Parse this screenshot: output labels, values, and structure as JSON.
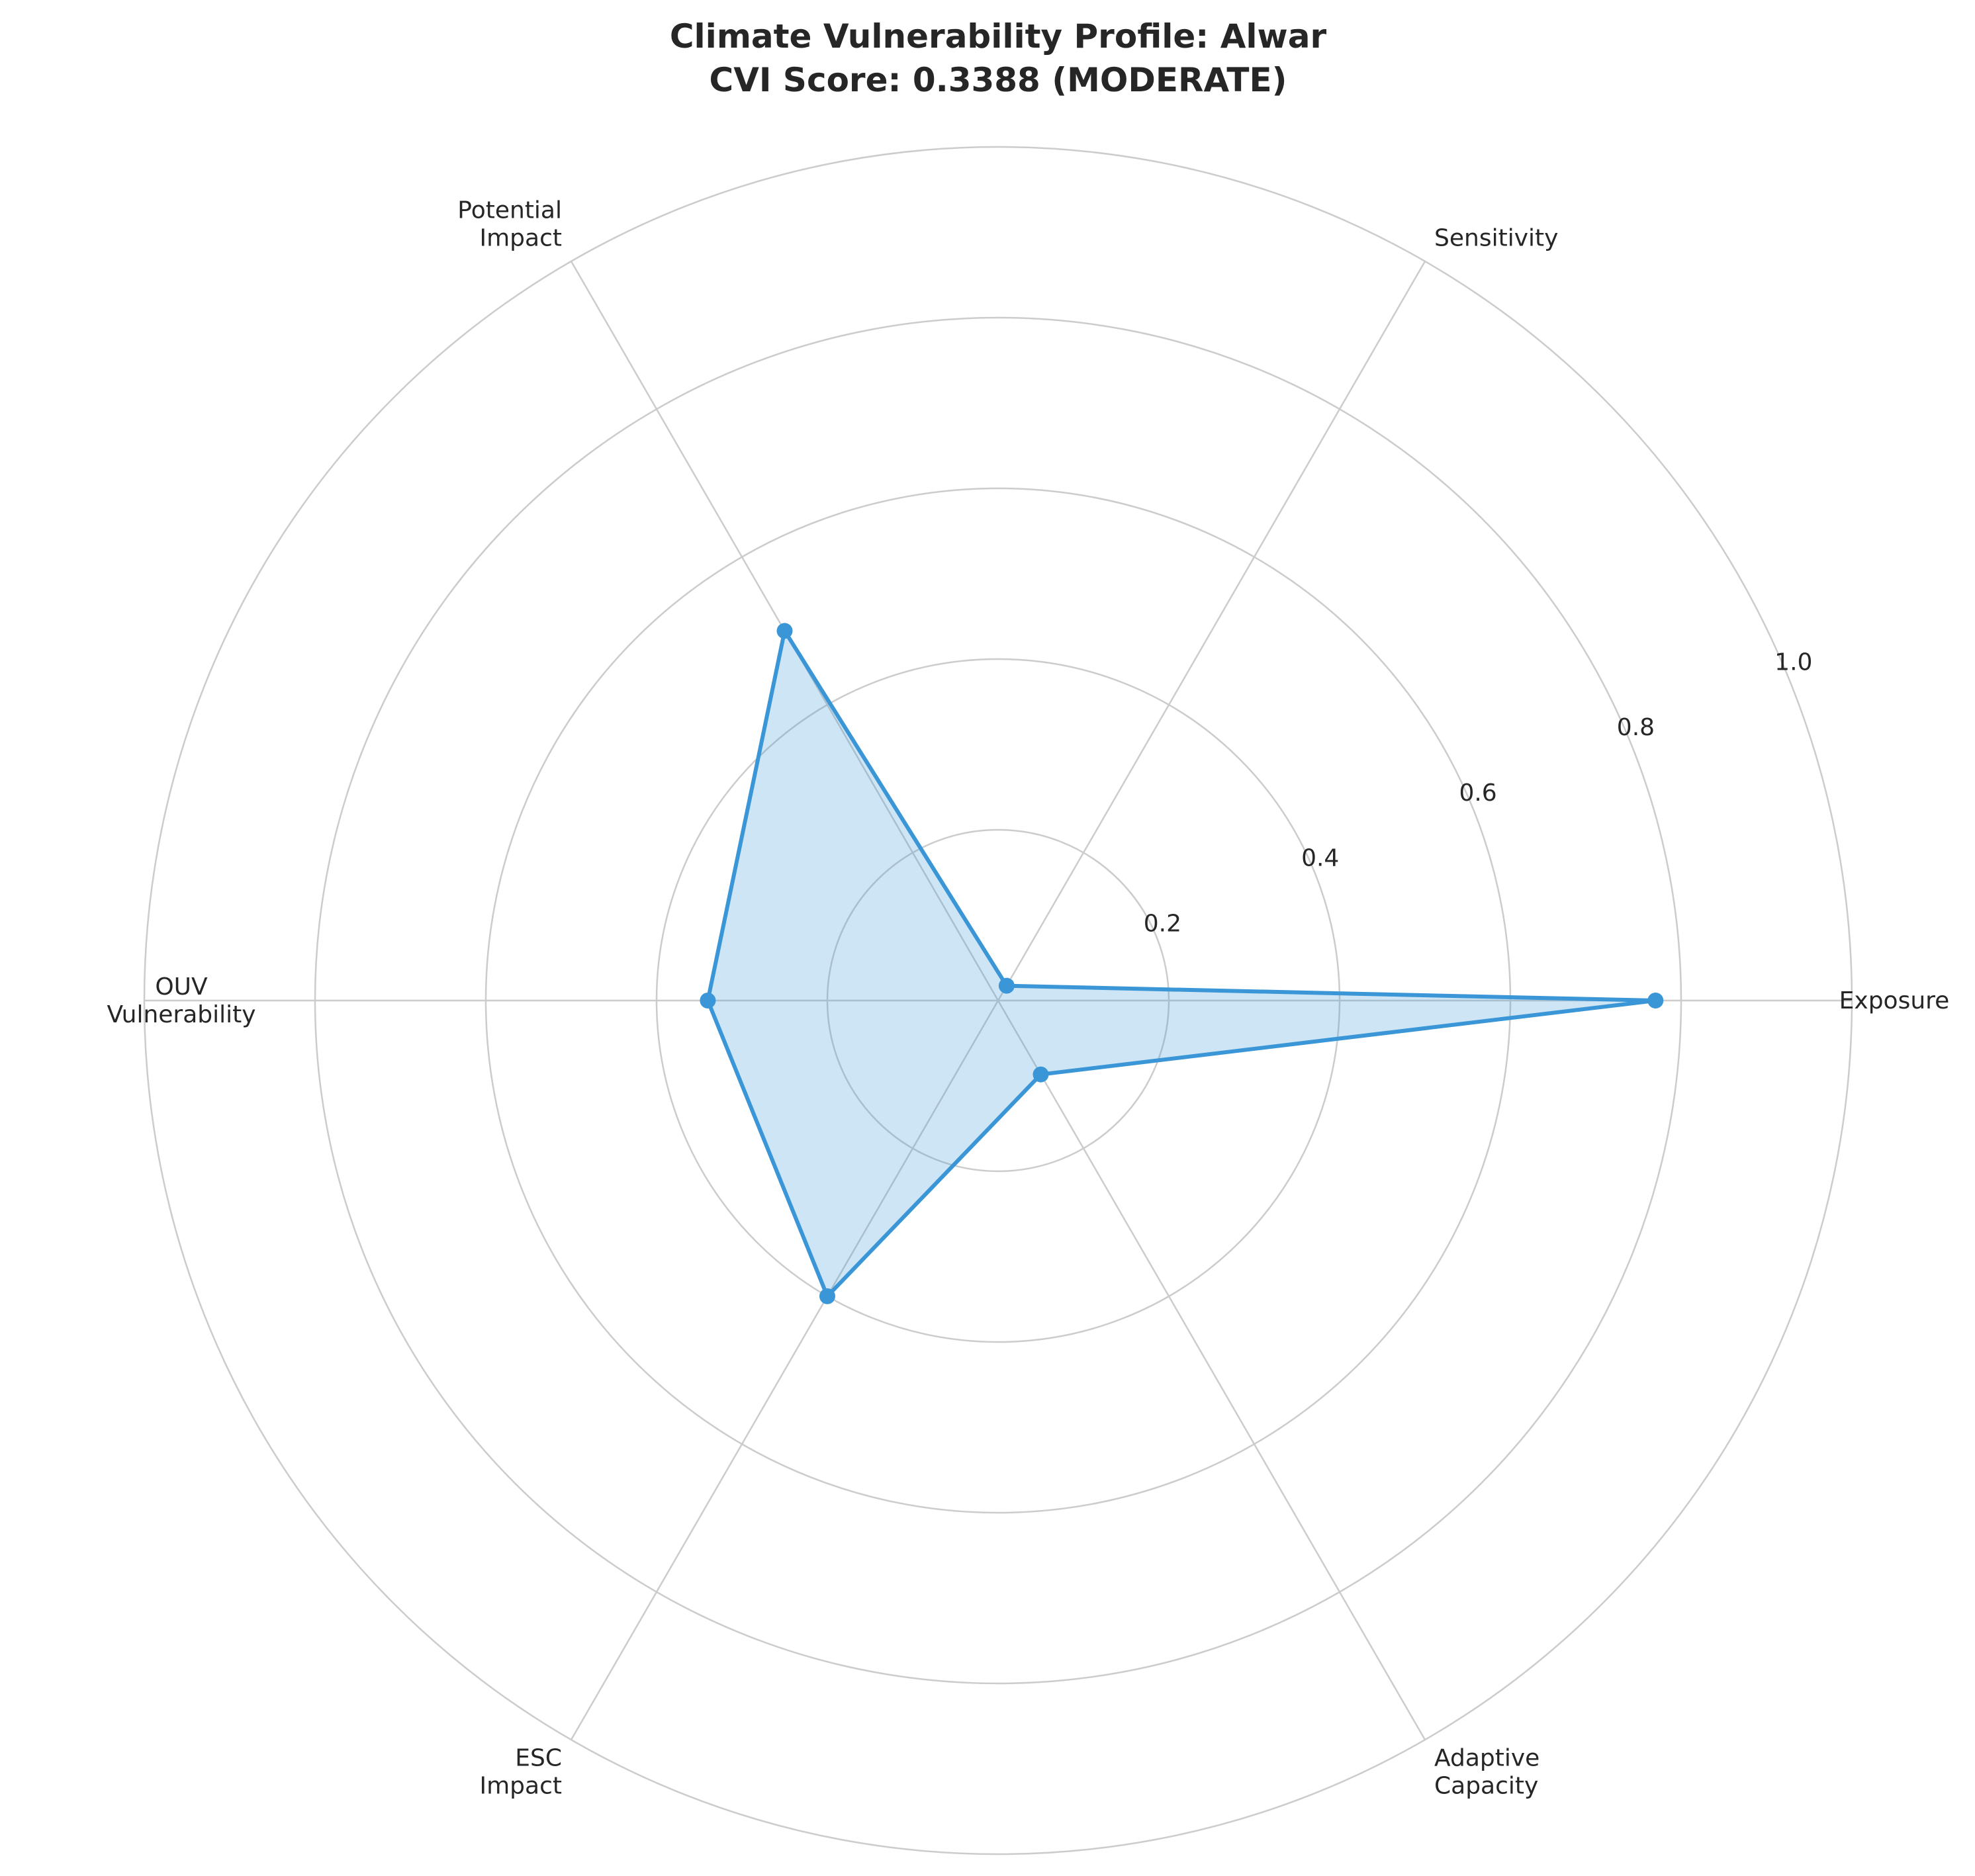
{
  "chart_data": {
    "type": "radar",
    "title": "Climate Vulnerability Profile: Alwar",
    "subtitle": "CVI Score: 0.3388 (MODERATE)",
    "categories": [
      [
        "Exposure"
      ],
      [
        "Sensitivity"
      ],
      [
        "Potential",
        "Impact"
      ],
      [
        "OUV",
        "Vulnerability"
      ],
      [
        "ESC",
        "Impact"
      ],
      [
        "Adaptive",
        "Capacity"
      ]
    ],
    "series": [
      {
        "values": [
          0.77,
          0.02,
          0.5,
          0.34,
          0.4,
          0.1
        ],
        "color": "#3a96d6"
      }
    ],
    "rlim": [
      0,
      1.0
    ],
    "r_ticks": [
      "0.2",
      "0.4",
      "0.6",
      "0.8",
      "1.0"
    ],
    "r_tick_values": [
      0.2,
      0.4,
      0.6,
      0.8,
      1.0
    ],
    "grid": true,
    "colors": {
      "grid": "#cccccc",
      "text": "#262626",
      "series": "#3a96d6"
    }
  }
}
